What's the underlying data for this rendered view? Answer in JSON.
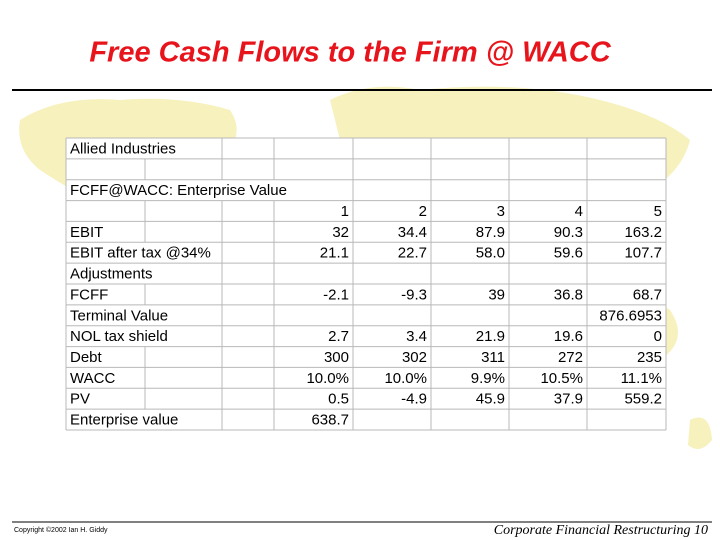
{
  "header": {
    "title": "Free Cash Flows to the Firm @ WACC"
  },
  "table": {
    "title": "Allied Industries",
    "subtitle": "FCFF@WACC: Enterprise Value",
    "columns": [
      "1",
      "2",
      "3",
      "4",
      "5"
    ],
    "rows": [
      {
        "label": "EBIT",
        "values": [
          "32",
          "34.4",
          "87.9",
          "90.3",
          "163.2"
        ]
      },
      {
        "label": "EBIT after tax @34%",
        "values": [
          "21.1",
          "22.7",
          "58.0",
          "59.6",
          "107.7"
        ]
      },
      {
        "label": "Adjustments",
        "values": [
          null,
          null,
          null,
          null,
          null
        ]
      },
      {
        "label": "FCFF",
        "values": [
          "-2.1",
          "-9.3",
          "39",
          "36.8",
          "68.7"
        ]
      },
      {
        "label": "Terminal Value",
        "values": [
          null,
          null,
          null,
          null,
          "876.6953"
        ]
      },
      {
        "label": "NOL tax shield",
        "values": [
          "2.7",
          "3.4",
          "21.9",
          "19.6",
          "0"
        ]
      },
      {
        "label": "Debt",
        "values": [
          "300",
          "302",
          "311",
          "272",
          "235"
        ]
      },
      {
        "label": "WACC",
        "values": [
          "10.0%",
          "10.0%",
          "9.9%",
          "10.5%",
          "11.1%"
        ]
      },
      {
        "label": "PV",
        "values": [
          "0.5",
          "-4.9",
          "45.9",
          "37.9",
          "559.2"
        ]
      },
      {
        "label": "Enterprise value",
        "values": [
          "638.7",
          null,
          null,
          null,
          null
        ]
      }
    ]
  },
  "footer": {
    "copyright": "Copyright ©2002 Ian H. Giddy",
    "course": "Corporate Financial Restructuring 10"
  }
}
